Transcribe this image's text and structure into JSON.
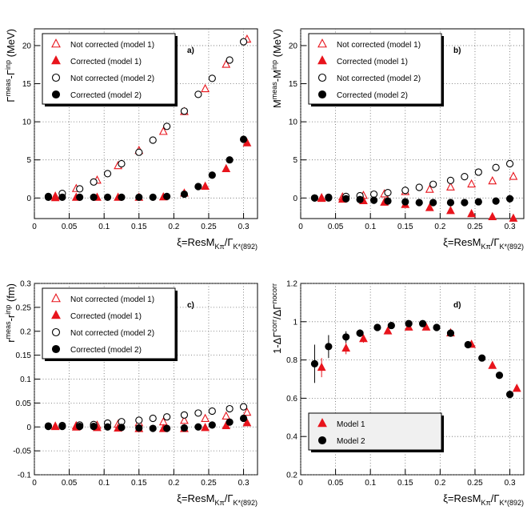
{
  "chart_data": [
    {
      "type": "scatter",
      "panel_label": "a)",
      "legend": "upper left",
      "grid": true,
      "xlabel": [
        {
          "text": "ξ=ResM"
        },
        {
          "text": "Kπ",
          "sub": true
        },
        {
          "text": "/Γ"
        },
        {
          "text": "K*(892)",
          "sub": true
        }
      ],
      "ylabel": [
        {
          "text": "Γ"
        },
        {
          "text": "meas",
          "sup": true
        },
        {
          "text": "-Γ"
        },
        {
          "text": "inp",
          "sup": true
        },
        {
          "text": " (MeV)"
        }
      ],
      "xlim": [
        0,
        0.32
      ],
      "xticks": [
        0,
        0.05,
        0.1,
        0.15,
        0.2,
        0.25,
        0.3
      ],
      "ylim": [
        -2.7,
        22.2
      ],
      "yticks": [
        0,
        5,
        10,
        15,
        20
      ],
      "series": [
        {
          "name": "Not corrected (model 1)",
          "color": "#e8141c",
          "marker": "triangle",
          "filled": false,
          "x": [
            0.03,
            0.06,
            0.09,
            0.12,
            0.15,
            0.185,
            0.215,
            0.245,
            0.275,
            0.305
          ],
          "values": [
            0.2,
            1.2,
            2.3,
            4.2,
            6.2,
            8.7,
            11.3,
            14.3,
            17.5,
            20.8
          ]
        },
        {
          "name": "Corrected (model 1)",
          "color": "#e8141c",
          "marker": "triangle",
          "filled": true,
          "x": [
            0.03,
            0.06,
            0.09,
            0.12,
            0.15,
            0.185,
            0.215,
            0.245,
            0.275,
            0.305
          ],
          "values": [
            0,
            0.05,
            0.05,
            0.05,
            0.05,
            0.1,
            0.6,
            1.5,
            3.8,
            7.2
          ]
        },
        {
          "name": "Not corrected (model 2)",
          "color": "#000000",
          "marker": "circle",
          "filled": false,
          "x": [
            0.02,
            0.04,
            0.065,
            0.085,
            0.105,
            0.125,
            0.15,
            0.17,
            0.19,
            0.215,
            0.235,
            0.255,
            0.28,
            0.3
          ],
          "values": [
            0.2,
            0.6,
            1.2,
            2.1,
            3.2,
            4.5,
            6.0,
            7.6,
            9.4,
            11.4,
            13.6,
            15.7,
            18.1,
            20.5
          ]
        },
        {
          "name": "Corrected (model 2)",
          "color": "#000000",
          "marker": "circle",
          "filled": true,
          "x": [
            0.02,
            0.04,
            0.065,
            0.085,
            0.105,
            0.125,
            0.15,
            0.17,
            0.19,
            0.215,
            0.235,
            0.255,
            0.28,
            0.3
          ],
          "values": [
            0.1,
            0.1,
            0.1,
            0.1,
            0.1,
            0.1,
            0.1,
            0.1,
            0.2,
            0.5,
            1.5,
            3.0,
            5.0,
            7.7
          ]
        }
      ]
    },
    {
      "type": "scatter",
      "panel_label": "b)",
      "legend": "upper left",
      "grid": true,
      "xlabel": [
        {
          "text": "ξ=ResM"
        },
        {
          "text": "Kπ",
          "sub": true
        },
        {
          "text": "/Γ"
        },
        {
          "text": "K*(892)",
          "sub": true
        }
      ],
      "ylabel": [
        {
          "text": "M"
        },
        {
          "text": "meas",
          "sup": true
        },
        {
          "text": "-M"
        },
        {
          "text": "inp",
          "sup": true
        },
        {
          "text": " (MeV)"
        }
      ],
      "xlim": [
        0,
        0.32
      ],
      "xticks": [
        0,
        0.05,
        0.1,
        0.15,
        0.2,
        0.25,
        0.3
      ],
      "ylim": [
        -2.7,
        22.2
      ],
      "yticks": [
        0,
        5,
        10,
        15,
        20
      ],
      "series": [
        {
          "name": "Not corrected (model 1)",
          "color": "#e8141c",
          "marker": "triangle",
          "filled": false,
          "x": [
            0.03,
            0.06,
            0.09,
            0.12,
            0.15,
            0.185,
            0.215,
            0.245,
            0.275,
            0.305
          ],
          "values": [
            0,
            0.1,
            0.3,
            0.5,
            0.8,
            1.1,
            1.4,
            1.8,
            2.2,
            2.8
          ]
        },
        {
          "name": "Corrected (model 1)",
          "color": "#e8141c",
          "marker": "triangle",
          "filled": true,
          "x": [
            0.03,
            0.06,
            0.09,
            0.12,
            0.15,
            0.185,
            0.215,
            0.245,
            0.275,
            0.305
          ],
          "values": [
            -0.1,
            -0.2,
            -0.4,
            -0.6,
            -0.9,
            -1.3,
            -1.7,
            -2.1,
            -2.5,
            -2.7
          ]
        },
        {
          "name": "Not corrected (model 2)",
          "color": "#000000",
          "marker": "circle",
          "filled": false,
          "x": [
            0.02,
            0.04,
            0.065,
            0.085,
            0.105,
            0.125,
            0.15,
            0.17,
            0.19,
            0.215,
            0.235,
            0.255,
            0.28,
            0.3
          ],
          "values": [
            0,
            0.1,
            0.2,
            0.3,
            0.5,
            0.7,
            1.0,
            1.4,
            1.8,
            2.3,
            2.8,
            3.4,
            4.0,
            4.5
          ]
        },
        {
          "name": "Corrected (model 2)",
          "color": "#000000",
          "marker": "circle",
          "filled": true,
          "x": [
            0.02,
            0.04,
            0.065,
            0.085,
            0.105,
            0.125,
            0.15,
            0.17,
            0.19,
            0.215,
            0.235,
            0.255,
            0.28,
            0.3
          ],
          "values": [
            0,
            0,
            -0.1,
            -0.2,
            -0.3,
            -0.4,
            -0.5,
            -0.6,
            -0.6,
            -0.6,
            -0.6,
            -0.5,
            -0.4,
            -0.1
          ]
        }
      ]
    },
    {
      "type": "scatter",
      "panel_label": "c)",
      "legend": "upper left",
      "grid": true,
      "xlabel": [
        {
          "text": "ξ=ResM"
        },
        {
          "text": "Kπ",
          "sub": true
        },
        {
          "text": "/Γ"
        },
        {
          "text": "K*(892)",
          "sub": true
        }
      ],
      "ylabel": [
        {
          "text": "r"
        },
        {
          "text": "meas",
          "sup": true
        },
        {
          "text": "-r"
        },
        {
          "text": "inp",
          "sup": true
        },
        {
          "text": " (fm)"
        }
      ],
      "xlim": [
        0,
        0.32
      ],
      "xticks": [
        0,
        0.05,
        0.1,
        0.15,
        0.2,
        0.25,
        0.3
      ],
      "ylim": [
        -0.1,
        0.3
      ],
      "yticks": [
        -0.1,
        -0.05,
        0,
        0.05,
        0.1,
        0.15,
        0.2,
        0.25,
        0.3
      ],
      "series": [
        {
          "name": "Not corrected (model 1)",
          "color": "#e8141c",
          "marker": "triangle",
          "filled": false,
          "x": [
            0.03,
            0.06,
            0.09,
            0.12,
            0.15,
            0.185,
            0.215,
            0.245,
            0.275,
            0.305
          ],
          "values": [
            0.001,
            0.002,
            0.003,
            0.005,
            0.008,
            0.01,
            0.013,
            0.017,
            0.022,
            0.03
          ]
        },
        {
          "name": "Corrected (model 1)",
          "color": "#e8141c",
          "marker": "triangle",
          "filled": true,
          "x": [
            0.03,
            0.06,
            0.09,
            0.12,
            0.15,
            0.185,
            0.215,
            0.245,
            0.275,
            0.305
          ],
          "values": [
            0,
            -0.001,
            -0.002,
            -0.003,
            -0.004,
            -0.004,
            -0.004,
            -0.002,
            0.002,
            0.008
          ]
        },
        {
          "name": "Not corrected (model 2)",
          "color": "#000000",
          "marker": "circle",
          "filled": false,
          "x": [
            0.02,
            0.04,
            0.065,
            0.085,
            0.105,
            0.125,
            0.15,
            0.17,
            0.19,
            0.215,
            0.235,
            0.255,
            0.28,
            0.3
          ],
          "values": [
            0.002,
            0.003,
            0.004,
            0.005,
            0.008,
            0.011,
            0.014,
            0.018,
            0.021,
            0.025,
            0.029,
            0.033,
            0.038,
            0.042
          ]
        },
        {
          "name": "Corrected (model 2)",
          "color": "#000000",
          "marker": "circle",
          "filled": true,
          "x": [
            0.02,
            0.04,
            0.065,
            0.085,
            0.105,
            0.125,
            0.15,
            0.17,
            0.19,
            0.215,
            0.235,
            0.255,
            0.28,
            0.3
          ],
          "values": [
            0.001,
            0.001,
            0.001,
            0.001,
            0,
            -0.001,
            -0.002,
            -0.003,
            -0.003,
            -0.002,
            0,
            0.004,
            0.01,
            0.018
          ]
        }
      ]
    },
    {
      "type": "scatter",
      "panel_label": "d)",
      "legend": "lower left",
      "grid": true,
      "xlabel": [
        {
          "text": "ξ=ResM"
        },
        {
          "text": "Kπ",
          "sub": true
        },
        {
          "text": "/Γ"
        },
        {
          "text": "K*(892)",
          "sub": true
        }
      ],
      "ylabel": [
        {
          "text": "1-ΔΓ"
        },
        {
          "text": "corr",
          "sup": true
        },
        {
          "text": "/ΔΓ"
        },
        {
          "text": "nocorr",
          "sup": true
        }
      ],
      "xlim": [
        0,
        0.32
      ],
      "xticks": [
        0,
        0.05,
        0.1,
        0.15,
        0.2,
        0.25,
        0.3
      ],
      "ylim": [
        0.2,
        1.2
      ],
      "yticks": [
        0.2,
        0.4,
        0.6,
        0.8,
        1,
        1.2
      ],
      "series": [
        {
          "name": "Model 1",
          "color": "#e8141c",
          "marker": "triangle",
          "filled": true,
          "x": [
            0.03,
            0.065,
            0.09,
            0.125,
            0.155,
            0.18,
            0.215,
            0.245,
            0.275,
            0.31
          ],
          "values": [
            0.76,
            0.86,
            0.91,
            0.95,
            0.97,
            0.97,
            0.94,
            0.88,
            0.77,
            0.65
          ],
          "errors": [
            0.05,
            0.03,
            0.02,
            0.01,
            0.01,
            0.01,
            0.01,
            0.01,
            0.01,
            0.01
          ]
        },
        {
          "name": "Model 2",
          "color": "#000000",
          "marker": "circle",
          "filled": true,
          "x": [
            0.02,
            0.04,
            0.065,
            0.085,
            0.11,
            0.13,
            0.155,
            0.175,
            0.195,
            0.215,
            0.24,
            0.26,
            0.285,
            0.3
          ],
          "values": [
            0.78,
            0.87,
            0.92,
            0.94,
            0.97,
            0.98,
            0.99,
            0.99,
            0.97,
            0.94,
            0.88,
            0.81,
            0.72,
            0.62
          ],
          "errors": [
            0.1,
            0.06,
            0.03,
            0.02,
            0.01,
            0.01,
            0.01,
            0.01,
            0.01,
            0.01,
            0.01,
            0.01,
            0.01,
            0.01
          ]
        }
      ]
    }
  ]
}
